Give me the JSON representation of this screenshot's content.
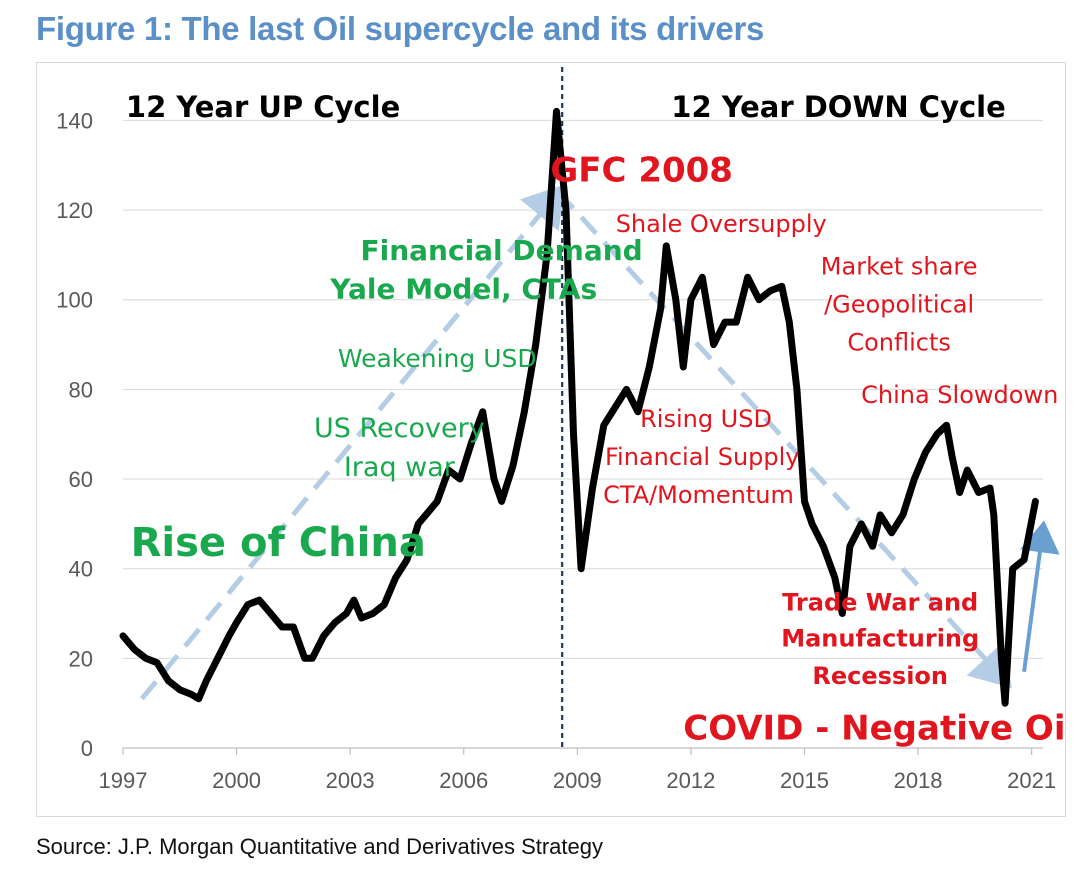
{
  "figure": {
    "title": "Figure 1: The last Oil supercycle and its drivers",
    "source": "Source: J.P. Morgan Quantitative and Derivatives Strategy"
  },
  "colors": {
    "title_blue": "#5b8fc7",
    "price_line": "#000000",
    "trend_arrow": "#b4cde6",
    "rebound_arrow": "#6a9fd2",
    "green_text": "#1aa84f",
    "red_text": "#e0151d",
    "divider_line": "#1f3864",
    "grid": "#d9d9d9"
  },
  "chart_data": {
    "type": "line",
    "title": "",
    "xlabel": "",
    "ylabel": "",
    "xlim": [
      1997,
      2021.3
    ],
    "ylim": [
      0,
      145
    ],
    "x_ticks": [
      "1997",
      "2000",
      "2003",
      "2006",
      "2009",
      "2012",
      "2015",
      "2018",
      "2021"
    ],
    "y_ticks": [
      "0",
      "20",
      "40",
      "60",
      "80",
      "100",
      "120",
      "140"
    ],
    "grid": "horizontal",
    "legend": "none",
    "divider_x": 2008.6,
    "series": [
      {
        "x": [
          1997.0,
          1997.3,
          1997.6,
          1997.9,
          1998.2,
          1998.5,
          1998.8,
          1999.0,
          1999.2,
          1999.5,
          1999.8,
          2000.0,
          2000.3,
          2000.6,
          2000.9,
          2001.2,
          2001.5,
          2001.8,
          2002.0,
          2002.3,
          2002.6,
          2002.9,
          2003.1,
          2003.3,
          2003.6,
          2003.9,
          2004.2,
          2004.5,
          2004.8,
          2005.0,
          2005.3,
          2005.6,
          2005.9,
          2006.2,
          2006.5,
          2006.8,
          2007.0,
          2007.3,
          2007.6,
          2007.9,
          2008.2,
          2008.45,
          2008.7,
          2008.9,
          2009.1,
          2009.4,
          2009.7,
          2010.0,
          2010.3,
          2010.6,
          2010.9,
          2011.2,
          2011.35,
          2011.6,
          2011.8,
          2012.0,
          2012.3,
          2012.6,
          2012.9,
          2013.2,
          2013.5,
          2013.8,
          2014.1,
          2014.4,
          2014.6,
          2014.8,
          2015.0,
          2015.2,
          2015.5,
          2015.8,
          2016.0,
          2016.2,
          2016.5,
          2016.8,
          2017.0,
          2017.3,
          2017.6,
          2017.9,
          2018.2,
          2018.5,
          2018.75,
          2018.9,
          2019.1,
          2019.3,
          2019.6,
          2019.9,
          2020.0,
          2020.2,
          2020.3,
          2020.5,
          2020.8,
          2021.1
        ],
        "y": [
          25,
          22,
          20,
          19,
          15,
          13,
          12,
          11,
          15,
          20,
          25,
          28,
          32,
          33,
          30,
          27,
          27,
          20,
          20,
          25,
          28,
          30,
          33,
          29,
          30,
          32,
          38,
          42,
          50,
          52,
          55,
          62,
          60,
          68,
          75,
          60,
          55,
          63,
          75,
          90,
          110,
          142,
          120,
          70,
          40,
          58,
          72,
          76,
          80,
          75,
          85,
          98,
          112,
          100,
          85,
          100,
          105,
          90,
          95,
          95,
          105,
          100,
          102,
          103,
          95,
          80,
          55,
          50,
          45,
          38,
          30,
          45,
          50,
          45,
          52,
          48,
          52,
          60,
          66,
          70,
          72,
          65,
          57,
          62,
          57,
          58,
          52,
          20,
          10,
          40,
          42,
          55
        ]
      }
    ],
    "cycle_labels": [
      {
        "text": "12 Year UP Cycle",
        "x": 2000.7,
        "y": 143
      },
      {
        "text": "12 Year DOWN Cycle",
        "x": 2015.9,
        "y": 143
      }
    ],
    "annotations": [
      {
        "text": "GFC 2008",
        "x": 2010.7,
        "y": 129,
        "color": "red",
        "weight": "bold",
        "size": 34
      },
      {
        "text": "Shale Oversupply",
        "x": 2012.8,
        "y": 117,
        "color": "red",
        "weight": "normal",
        "size": 24
      },
      {
        "text": "Market share",
        "x": 2017.5,
        "y": 107.5,
        "color": "red",
        "weight": "normal",
        "size": 24
      },
      {
        "text": "/Geopolitical",
        "x": 2017.5,
        "y": 99,
        "color": "red",
        "weight": "normal",
        "size": 24
      },
      {
        "text": "Conflicts",
        "x": 2017.5,
        "y": 90.5,
        "color": "red",
        "weight": "normal",
        "size": 24
      },
      {
        "text": "China Slowdown",
        "x": 2019.1,
        "y": 78.8,
        "color": "red",
        "weight": "normal",
        "size": 24
      },
      {
        "text": "Rising USD",
        "x": 2012.4,
        "y": 73.5,
        "color": "red",
        "weight": "normal",
        "size": 24
      },
      {
        "text": "Financial Supply",
        "x": 2012.3,
        "y": 65,
        "color": "red",
        "weight": "normal",
        "size": 24
      },
      {
        "text": "CTA/Momentum",
        "x": 2012.2,
        "y": 56.5,
        "color": "red",
        "weight": "normal",
        "size": 24
      },
      {
        "text": "Trade War and",
        "x": 2017.0,
        "y": 32.5,
        "color": "red",
        "weight": "bold",
        "size": 24
      },
      {
        "text": "Manufacturing",
        "x": 2017.0,
        "y": 24.5,
        "color": "red",
        "weight": "bold",
        "size": 24
      },
      {
        "text": "Recession",
        "x": 2017.0,
        "y": 16.2,
        "color": "red",
        "weight": "bold",
        "size": 24
      },
      {
        "text": "COVID - Negative Oil",
        "x": 2017.0,
        "y": 4.6,
        "color": "red",
        "weight": "bold",
        "size": 34
      },
      {
        "text": "Financial Demand",
        "x": 2007.0,
        "y": 111,
        "color": "green",
        "weight": "bold",
        "size": 28
      },
      {
        "text": "Yale Model, CTAs",
        "x": 2006.0,
        "y": 102.5,
        "color": "green",
        "weight": "bold",
        "size": 28
      },
      {
        "text": "Weakening USD",
        "x": 2005.3,
        "y": 87,
        "color": "green",
        "weight": "normal",
        "size": 25
      },
      {
        "text": "US Recovery",
        "x": 2004.3,
        "y": 71.5,
        "color": "green",
        "weight": "normal",
        "size": 27
      },
      {
        "text": "Iraq war",
        "x": 2004.3,
        "y": 62.8,
        "color": "green",
        "weight": "normal",
        "size": 27
      },
      {
        "text": "Rise of China",
        "x": 2001.1,
        "y": 46,
        "color": "green",
        "weight": "bold",
        "size": 40
      }
    ],
    "trend_arrows": [
      {
        "from": [
          1997.5,
          11
        ],
        "to": [
          2008.5,
          124
        ],
        "style": "dashed"
      },
      {
        "from": [
          2008.5,
          124
        ],
        "to": [
          2020.3,
          15
        ],
        "style": "dashed"
      },
      {
        "from": [
          2020.8,
          17
        ],
        "to": [
          2021.3,
          49
        ],
        "style": "solid"
      }
    ]
  }
}
